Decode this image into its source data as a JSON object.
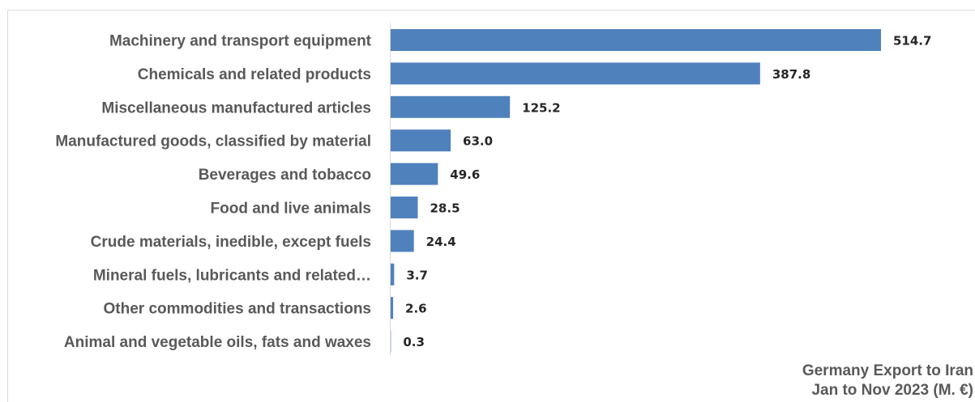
{
  "chart_data": {
    "type": "bar",
    "orientation": "horizontal",
    "categories": [
      "Machinery and transport equipment",
      "Chemicals and related products",
      "Miscellaneous manufactured articles",
      "Manufactured goods, classified by material",
      "Beverages and tobacco",
      "Food and live animals",
      "Crude materials, inedible, except fuels",
      "Mineral fuels, lubricants and related…",
      "Other commodities and transactions",
      "Animal and vegetable oils, fats and waxes"
    ],
    "values": [
      514.7,
      387.8,
      125.2,
      63.0,
      49.6,
      28.5,
      24.4,
      3.7,
      2.6,
      0.3
    ],
    "value_labels": [
      "514.7",
      "387.8",
      "125.2",
      "63.0",
      "49.6",
      "28.5",
      "24.4",
      "3.7",
      "2.6",
      "0.3"
    ],
    "title": "",
    "xlabel": "",
    "ylabel": "",
    "xlim": [
      0,
      514.7
    ],
    "grid": false,
    "bar_color": "#4f81bd"
  },
  "caption": {
    "line1": "Germany Export to Iran",
    "line2": "Jan to Nov 2023 (M. €)"
  }
}
